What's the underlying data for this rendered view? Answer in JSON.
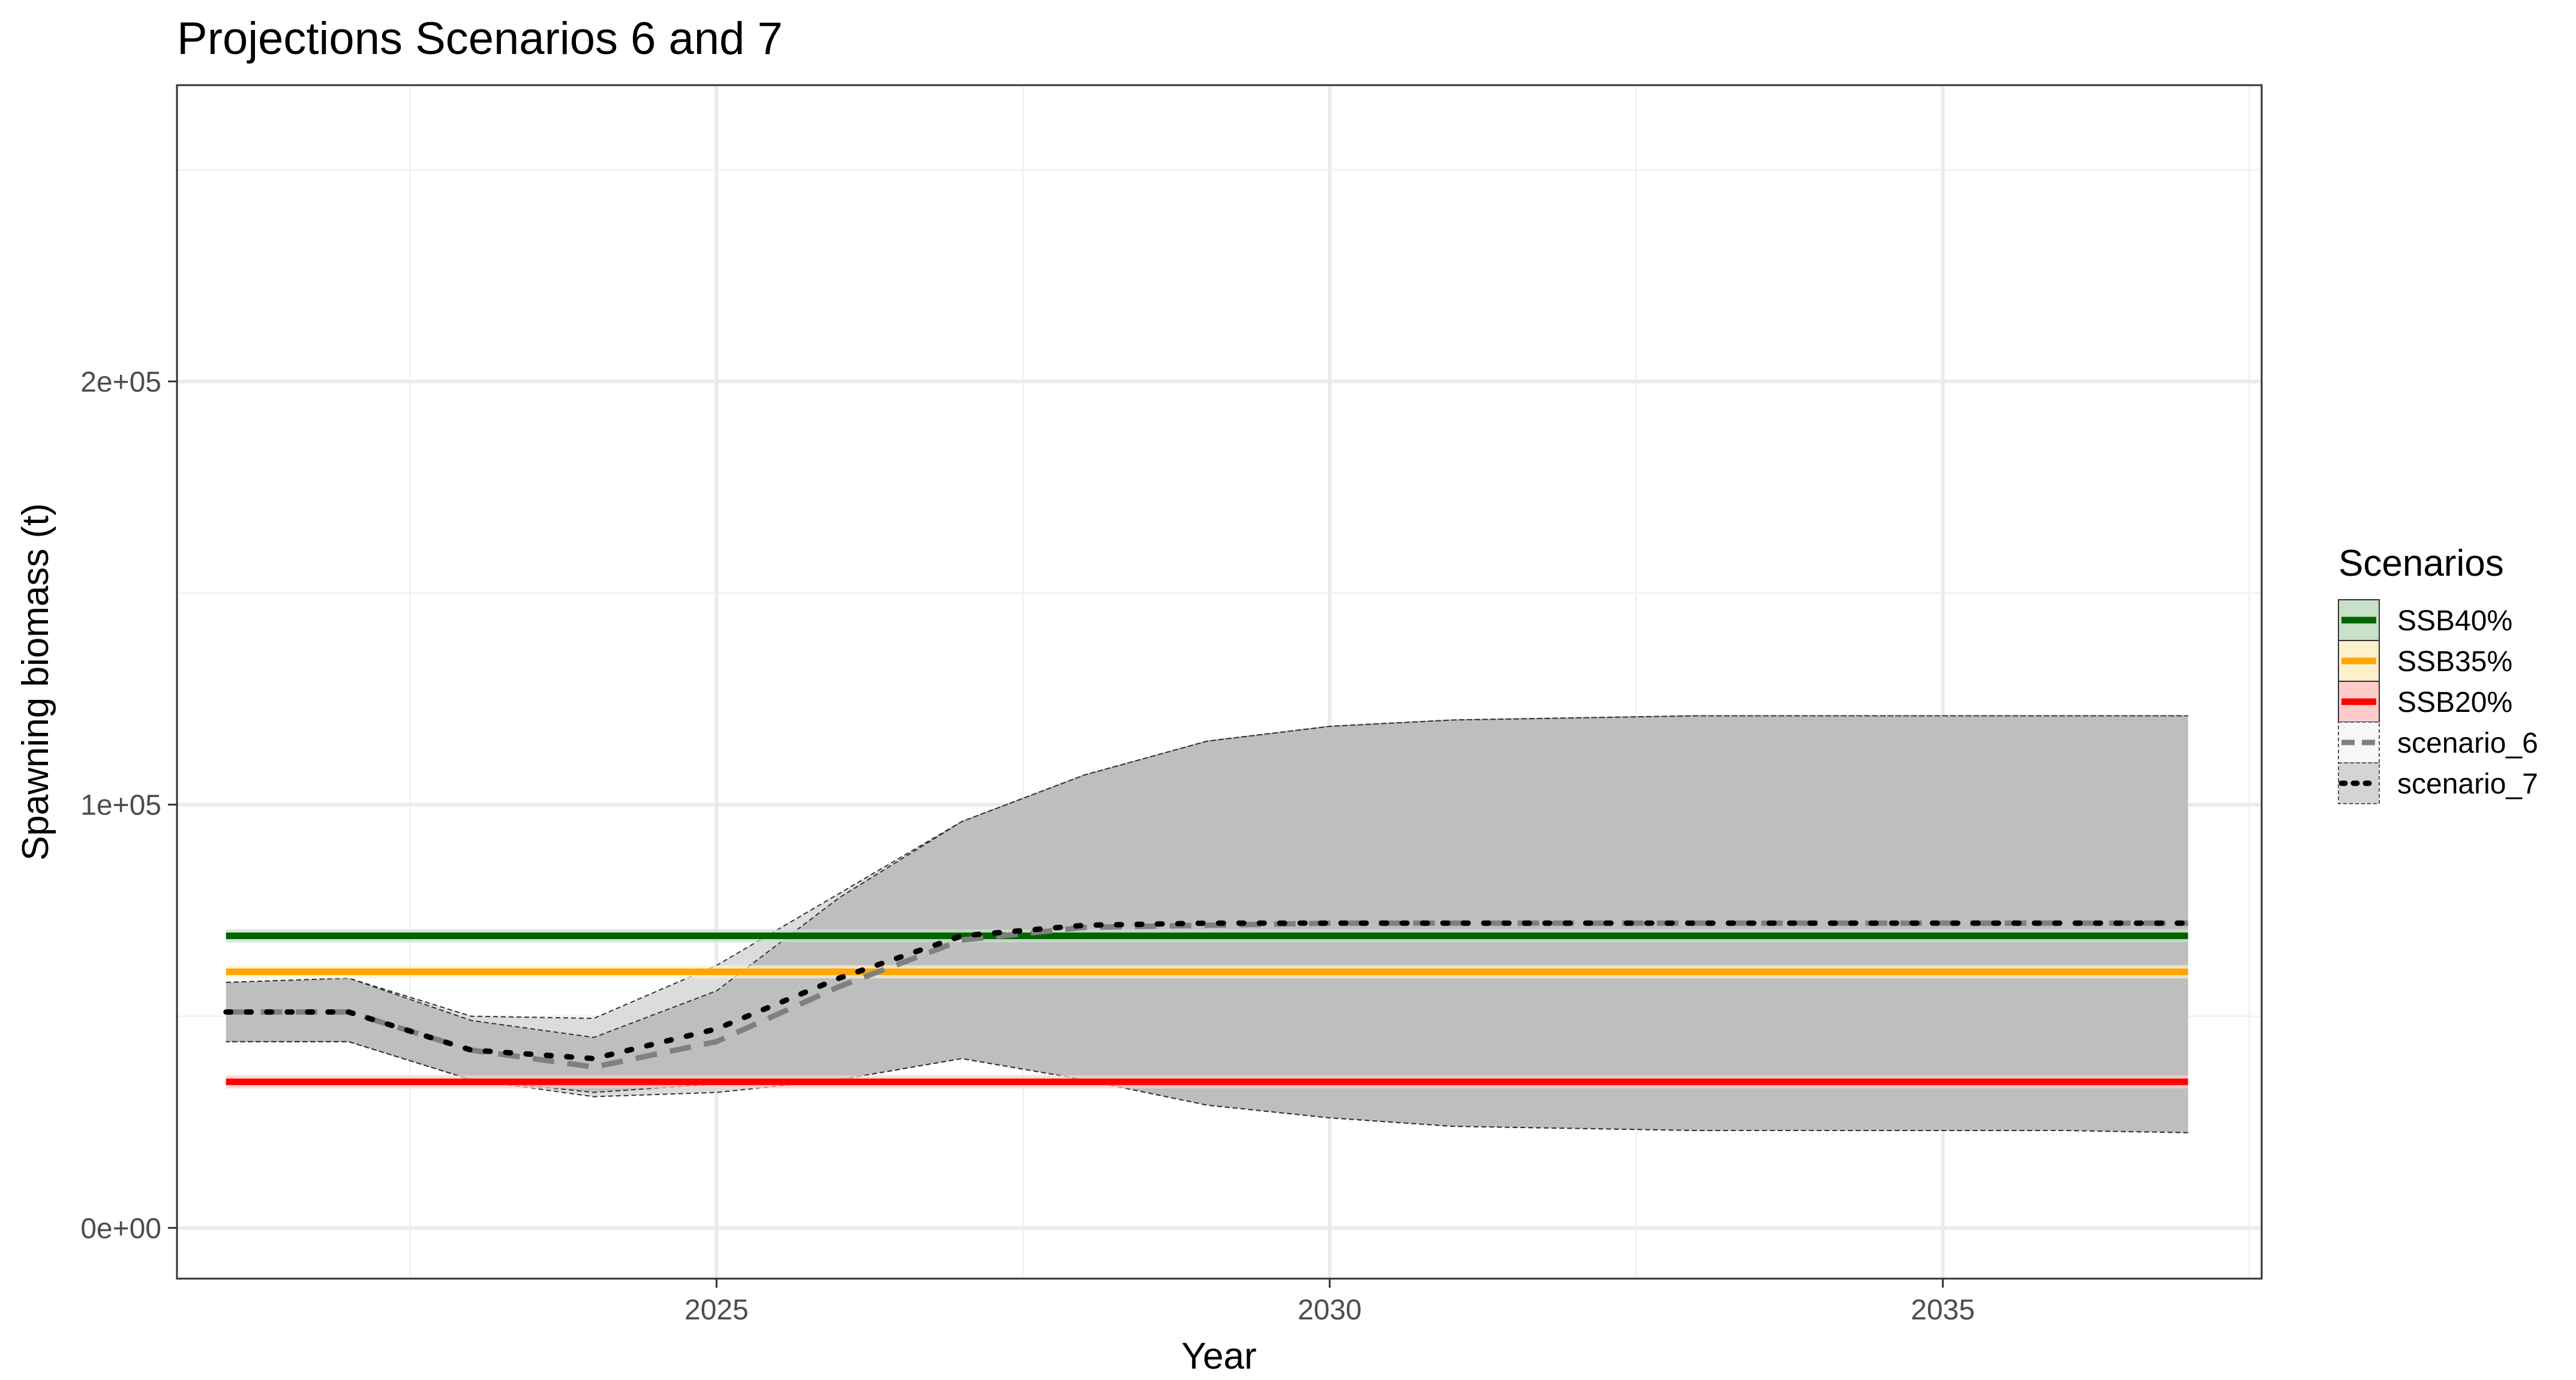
{
  "chart_data": {
    "type": "line",
    "title": "Projections Scenarios 6 and 7",
    "xlabel": "Year",
    "ylabel": "Spawning biomass (t)",
    "xlim": [
      2020.6,
      2037.6
    ],
    "ylim": [
      -12000,
      270000
    ],
    "x_ticks": [
      {
        "value": 2025,
        "label": "2025"
      },
      {
        "value": 2030,
        "label": "2030"
      },
      {
        "value": 2035,
        "label": "2035"
      }
    ],
    "y_ticks": [
      {
        "value": 0,
        "label": "0e+00"
      },
      {
        "value": 100000,
        "label": "1e+05"
      },
      {
        "value": 200000,
        "label": "2e+05"
      }
    ],
    "grid": true,
    "legend": {
      "title": "Scenarios",
      "placement": "right",
      "entries": [
        {
          "name": "SSB40%",
          "key": "ssb40"
        },
        {
          "name": "SSB35%",
          "key": "ssb35"
        },
        {
          "name": "SSB20%",
          "key": "ssb20"
        },
        {
          "name": "scenario_6",
          "key": "scenario_6"
        },
        {
          "name": "scenario_7",
          "key": "scenario_7"
        }
      ]
    },
    "reference_lines": [
      {
        "key": "ssb40",
        "name": "SSB40%",
        "value": 69000,
        "color": "#006400",
        "fill": "#c8dfc8"
      },
      {
        "key": "ssb35",
        "name": "SSB35%",
        "value": 60500,
        "color": "#ffa500",
        "fill": "#fff0cc"
      },
      {
        "key": "ssb20",
        "name": "SSB20%",
        "value": 34500,
        "color": "#ff0000",
        "fill": "#ffcccc"
      }
    ],
    "series": [
      {
        "key": "scenario_6",
        "name": "scenario_6",
        "line_style": "dashed",
        "line_color": "#808080",
        "x": [
          2021,
          2022,
          2023,
          2024,
          2025,
          2026,
          2027,
          2028,
          2029,
          2030,
          2031,
          2032,
          2033,
          2034,
          2035,
          2036,
          2037
        ],
        "y": [
          51000,
          51000,
          42000,
          38000,
          44000,
          57000,
          68000,
          71000,
          71500,
          72000,
          72000,
          72000,
          72000,
          72000,
          72000,
          72000,
          72000
        ],
        "lower": [
          44000,
          44000,
          35000,
          32000,
          34000,
          35000,
          40000,
          35000,
          29000,
          26000,
          24000,
          23500,
          23000,
          23000,
          23000,
          23000,
          22500
        ],
        "upper": [
          58000,
          59000,
          49000,
          45000,
          56000,
          78000,
          96000,
          107000,
          115000,
          118500,
          120000,
          120500,
          121000,
          121000,
          121000,
          121000,
          121000
        ]
      },
      {
        "key": "scenario_7",
        "name": "scenario_7",
        "line_style": "dotted",
        "line_color": "#000000",
        "x": [
          2021,
          2022,
          2023,
          2024,
          2025,
          2026,
          2027,
          2028,
          2029,
          2030,
          2031,
          2032,
          2033,
          2034,
          2035,
          2036,
          2037
        ],
        "y": [
          51000,
          51000,
          42000,
          40000,
          47000,
          59000,
          69000,
          71500,
          72000,
          72000,
          72000,
          72000,
          72000,
          72000,
          72000,
          72000,
          72000
        ],
        "lower": [
          44000,
          44000,
          35000,
          31000,
          32000,
          35000,
          40000,
          35000,
          29000,
          26000,
          24000,
          23500,
          23000,
          23000,
          23000,
          23000,
          22500
        ],
        "upper": [
          58000,
          59000,
          50000,
          49500,
          62000,
          79000,
          96000,
          107000,
          115000,
          118500,
          120000,
          120500,
          121000,
          121000,
          121000,
          121000,
          121000
        ]
      }
    ]
  }
}
